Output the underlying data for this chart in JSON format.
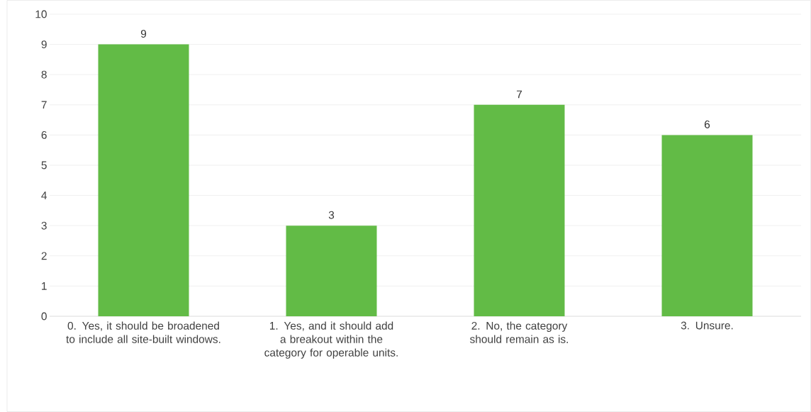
{
  "chart_data": {
    "type": "bar",
    "categories": [
      "0.   Yes, it should be broadened to include all site-built windows.",
      "1.   Yes, and it should add a breakout within the category for operable units.",
      "2.   No, the category should remain as is.",
      "3.   Unsure."
    ],
    "values": [
      9,
      3,
      7,
      6
    ],
    "color": "#62bb46",
    "ylim": [
      0,
      10
    ],
    "yticks": [
      0,
      1,
      2,
      3,
      4,
      5,
      6,
      7,
      8,
      9,
      10
    ],
    "grid": "y",
    "data_labels": true
  }
}
